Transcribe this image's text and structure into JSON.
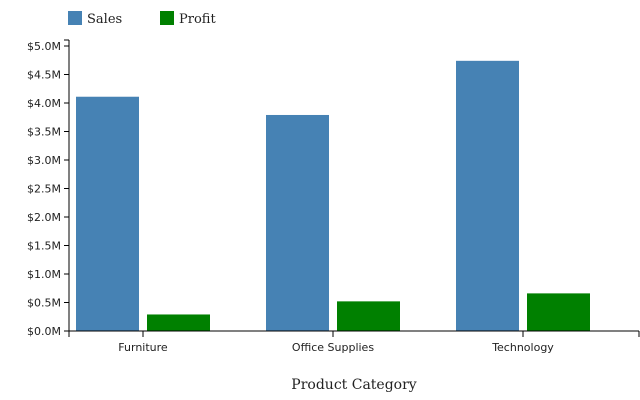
{
  "chart_data": {
    "type": "bar",
    "title": "",
    "xlabel": "Product Category",
    "ylabel": "",
    "categories": [
      "Furniture",
      "Office Supplies",
      "Technology"
    ],
    "series": [
      {
        "name": "Sales",
        "color": "#4682b4",
        "values": [
          4.11,
          3.79,
          4.74
        ]
      },
      {
        "name": "Profit",
        "color": "#008000",
        "values": [
          0.29,
          0.52,
          0.66
        ]
      }
    ],
    "ylim": [
      0,
      5.0
    ],
    "yticks": [
      0,
      0.5,
      1.0,
      1.5,
      2.0,
      2.5,
      3.0,
      3.5,
      4.0,
      4.5,
      5.0
    ],
    "ytick_labels": [
      "$0.0M",
      "$0.5M",
      "$1.0M",
      "$1.5M",
      "$2.0M",
      "$2.5M",
      "$3.0M",
      "$3.5M",
      "$4.0M",
      "$4.5M",
      "$5.0M"
    ],
    "value_unit": "$M",
    "legend_position": "top-left",
    "grid": false
  }
}
